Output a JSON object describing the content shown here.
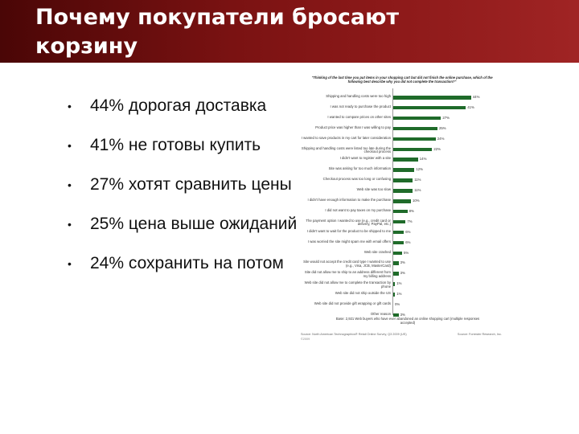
{
  "slide": {
    "title": "Почему покупатели бросают корзину",
    "bullet_glyph": "•",
    "bullets": [
      "44% дорогая доставка",
      "41% не готовы купить",
      "27% хотят сравнить цены",
      "25% цена выше ожиданий",
      "24% сохранить на потом"
    ]
  },
  "chart_data": {
    "type": "bar",
    "orientation": "horizontal",
    "title": "\"Thinking of the last time you put items in your shopping cart but did not finish the online purchase, which of the following best describe why you did not complete the transaction?\"",
    "color": "#1f6b2a",
    "categories": [
      "Shipping and handling costs were too high",
      "I was not ready to purchase the product",
      "I wanted to compare prices on other sites",
      "Product price was higher than I was willing to pay",
      "I wanted to save products in my cart for later consideration",
      "Shipping and handling costs were listed too late during the checkout process",
      "I didn't want to register with a site",
      "Site was asking for too much information",
      "Checkout process was too long or confusing",
      "Web site was too slow",
      "I didn't have enough information to make the purchase",
      "I did not want to pay taxes on my purchase",
      "The payment option I wanted to use (e.g., credit card or delivery, PayPal, etc.)",
      "I didn't want to wait for the product to be shipped to me",
      "I was worried the site might spam me with email offers",
      "Web site crashed",
      "Site would not accept the credit card type I wanted to use (e.g., Visa, JCB, MasterCard)",
      "Site did not allow me to ship to an address different from my billing address",
      "Web site did not allow me to complete the transaction by phone",
      "Web site did not ship outside the US",
      "Web site did not provide gift wrapping or gift cards",
      "Other reason"
    ],
    "values": [
      44,
      41,
      27,
      25,
      24,
      22,
      14,
      12,
      11,
      11,
      10,
      8,
      7,
      6,
      6,
      5,
      3,
      3,
      1,
      1,
      0,
      3
    ],
    "value_labels": [
      "44%",
      "41%",
      "27%",
      "25%",
      "24%",
      "22%",
      "14%",
      "12%",
      "11%",
      "11%",
      "10%",
      "8%",
      "7%",
      "6%",
      "6%",
      "5%",
      "3%",
      "3%",
      "1%",
      "1%",
      "0%",
      "3%"
    ],
    "xlim": [
      0,
      50
    ],
    "note": "Base: 2,921 Web buyers who have ever abandoned an online shopping cart (multiple responses accepted)",
    "source": "Source: North American Technographics® Retail Online Survey, Q3 2009 (US)",
    "copyright": "©2009",
    "brand": "Source: Forrester Research, Inc."
  }
}
